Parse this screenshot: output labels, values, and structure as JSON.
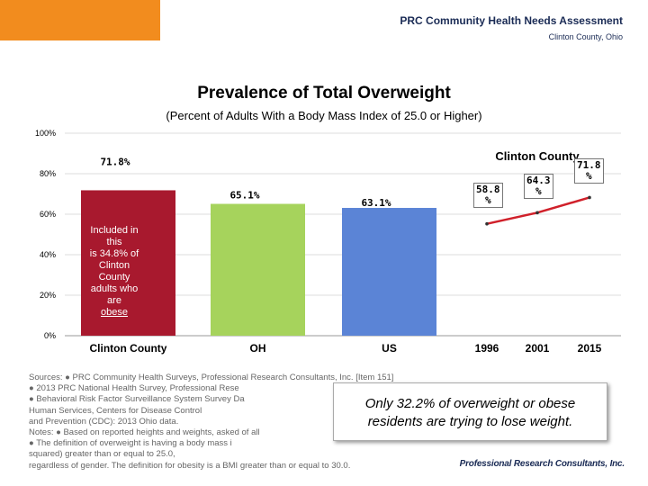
{
  "header": {
    "title": "PRC Community Health Needs Assessment",
    "subtitle": "Clinton County, Ohio"
  },
  "colors": {
    "brand_orange": "#f28c1e",
    "clinton_bar": "#a8192e",
    "oh_bar": "#a6d35c",
    "us_bar": "#5b84d6",
    "trend_line": "#d0202a",
    "gridline": "#dddddd"
  },
  "chart_data": [
    {
      "type": "bar",
      "title": "Prevalence of Total Overweight",
      "subtitle": "(Percent of Adults With a Body Mass Index of 25.0 or Higher)",
      "categories": [
        "Clinton County",
        "OH",
        "US"
      ],
      "values": [
        71.8,
        65.1,
        63.1
      ],
      "value_labels": [
        "71.8%",
        "65.1%",
        "63.1%"
      ],
      "ylim": [
        0,
        100
      ],
      "yticks": [
        0,
        20,
        40,
        60,
        80,
        100
      ],
      "ytick_labels": [
        "0%",
        "20%",
        "40%",
        "60%",
        "80%",
        "100%"
      ],
      "grid": true,
      "bar_note": {
        "line1": "Included in this",
        "line2": "is 34.8% of",
        "line3": "Clinton County",
        "line4": "adults who are",
        "line5": "obese"
      }
    },
    {
      "type": "line",
      "series_name": "Clinton County",
      "x": [
        "1996",
        "2001",
        "2015"
      ],
      "values": [
        58.8,
        64.3,
        71.8
      ],
      "value_labels": [
        {
          "line1": "58.8",
          "line2": "%"
        },
        {
          "line1": "64.3",
          "line2": "%"
        },
        {
          "line1": "71.8",
          "line2": "%"
        }
      ],
      "ylim": [
        0,
        100
      ]
    }
  ],
  "sources": {
    "line1": "Sources:          ●              PRC Community Health Surveys, Professional Research Consultants, Inc. [Item 151]",
    "line2": "          ●         2013 PRC National Health Survey, Professional Rese",
    "line3": "          ●         Behavioral Risk Factor Surveillance System Survey Da",
    "line4": "      Human Services, Centers for Disease Control",
    "line5": "                    and Prevention (CDC): 2013 Ohio data.",
    "line6": "  Notes:  ●         Based on reported heights and weights, asked of all",
    "line7": "          ●         The definition of overweight is having a body mass i",
    "line8": "      squared) greater than or equal to 25.0,",
    "line9": "                    regardless of gender.  The definition for obesity is a BMI greater than or equal to 30.0."
  },
  "callout": {
    "line1": "Only 32.2% of overweight or obese",
    "line2": "residents are trying to lose weight."
  },
  "footer": {
    "logo_text": "Professional Research Consultants, Inc."
  }
}
